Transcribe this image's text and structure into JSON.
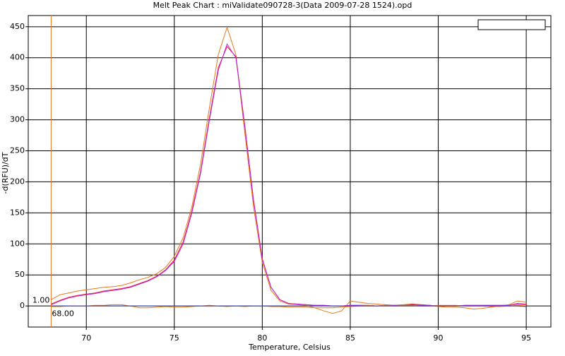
{
  "chart_data": {
    "type": "line",
    "title": "Melt Peak Chart : miValidate090728-3(Data 2009-07-28 1524).opd",
    "xlabel": "Temperature, Celsius",
    "ylabel": "-d(RFU)/dT",
    "x": [
      68,
      68.5,
      69,
      69.5,
      70,
      70.5,
      71,
      71.5,
      72,
      72.5,
      73,
      73.5,
      74,
      74.5,
      75,
      75.5,
      76,
      76.5,
      77,
      77.5,
      78,
      78.5,
      79,
      79.5,
      80,
      80.5,
      81,
      81.5,
      82,
      82.5,
      83,
      83.5,
      84,
      84.5,
      85,
      85.5,
      86,
      86.5,
      87,
      87.5,
      88,
      88.5,
      89,
      89.5,
      90,
      90.5,
      91,
      91.5,
      92,
      92.5,
      93,
      93.5,
      94,
      94.5,
      95
    ],
    "series": [
      {
        "color": "#e8761a",
        "values": [
          10,
          18,
          21,
          24,
          26,
          28,
          30,
          31,
          33,
          37,
          42,
          46,
          52,
          62,
          80,
          110,
          160,
          230,
          320,
          405,
          449,
          405,
          280,
          160,
          70,
          25,
          8,
          3,
          2,
          1,
          -3,
          -8,
          -12,
          -8,
          8,
          6,
          4,
          3,
          2,
          1,
          2,
          3,
          2,
          1,
          -1,
          -2,
          -2,
          -3,
          -5,
          -4,
          -2,
          0,
          2,
          8,
          6
        ]
      },
      {
        "color": "#e8243c",
        "values": [
          3,
          9,
          14,
          17,
          19,
          21,
          24,
          26,
          28,
          31,
          36,
          41,
          48,
          58,
          74,
          103,
          153,
          218,
          304,
          384,
          418,
          402,
          292,
          172,
          76,
          30,
          10,
          4,
          3,
          2,
          1,
          1,
          0,
          0,
          1,
          1,
          1,
          0,
          1,
          1,
          1,
          3,
          2,
          1,
          0,
          0,
          0,
          1,
          1,
          1,
          1,
          1,
          1,
          4,
          3
        ]
      },
      {
        "color": "#c020d8",
        "values": [
          2,
          8,
          13,
          16,
          18,
          20,
          23,
          25,
          27,
          30,
          35,
          40,
          47,
          57,
          72,
          100,
          150,
          215,
          300,
          380,
          422,
          400,
          290,
          170,
          75,
          30,
          10,
          4,
          3,
          2,
          1,
          1,
          0,
          0,
          1,
          1,
          1,
          0,
          1,
          1,
          1,
          2,
          1,
          1,
          0,
          0,
          0,
          1,
          1,
          1,
          1,
          1,
          1,
          3,
          2
        ]
      },
      {
        "color": "#e87a10",
        "values": [
          -1,
          -1,
          0,
          0,
          0,
          1,
          1,
          2,
          2,
          0,
          -3,
          -3,
          -2,
          -1,
          -2,
          -2,
          -1,
          0,
          1,
          0,
          -1,
          0,
          -1,
          0,
          0,
          -1,
          -1,
          -2,
          -2,
          -2,
          -3,
          -3,
          -3,
          -2,
          -1,
          0,
          1,
          0,
          1,
          0,
          1,
          1,
          0,
          0,
          1,
          1,
          1,
          0,
          0,
          0,
          -1,
          -1,
          0,
          1,
          0
        ]
      },
      {
        "color": "#2040d0",
        "values": [
          0,
          0,
          0,
          0,
          0,
          0,
          0,
          0,
          0,
          0,
          0,
          0,
          0,
          0,
          0,
          0,
          0,
          0,
          0,
          0,
          0,
          0,
          0,
          0,
          0,
          0,
          0,
          0,
          0,
          0,
          0,
          0,
          0,
          0,
          0,
          0,
          0,
          0,
          0,
          0,
          0,
          0,
          0,
          0,
          0,
          0,
          0,
          0,
          0,
          0,
          0,
          0,
          0,
          0,
          -1
        ]
      }
    ],
    "xlim": [
      66.7,
      96.4
    ],
    "ylim": [
      -34,
      468
    ],
    "xticks": [
      70,
      75,
      80,
      85,
      90,
      95
    ],
    "yticks": [
      0,
      50,
      100,
      150,
      200,
      250,
      300,
      350,
      400,
      450
    ],
    "grid": true,
    "cursor": {
      "color": "#e8761a",
      "x": {
        "value": 68,
        "label": "68.00"
      },
      "y": {
        "value": 1,
        "label": "1.00"
      }
    }
  }
}
